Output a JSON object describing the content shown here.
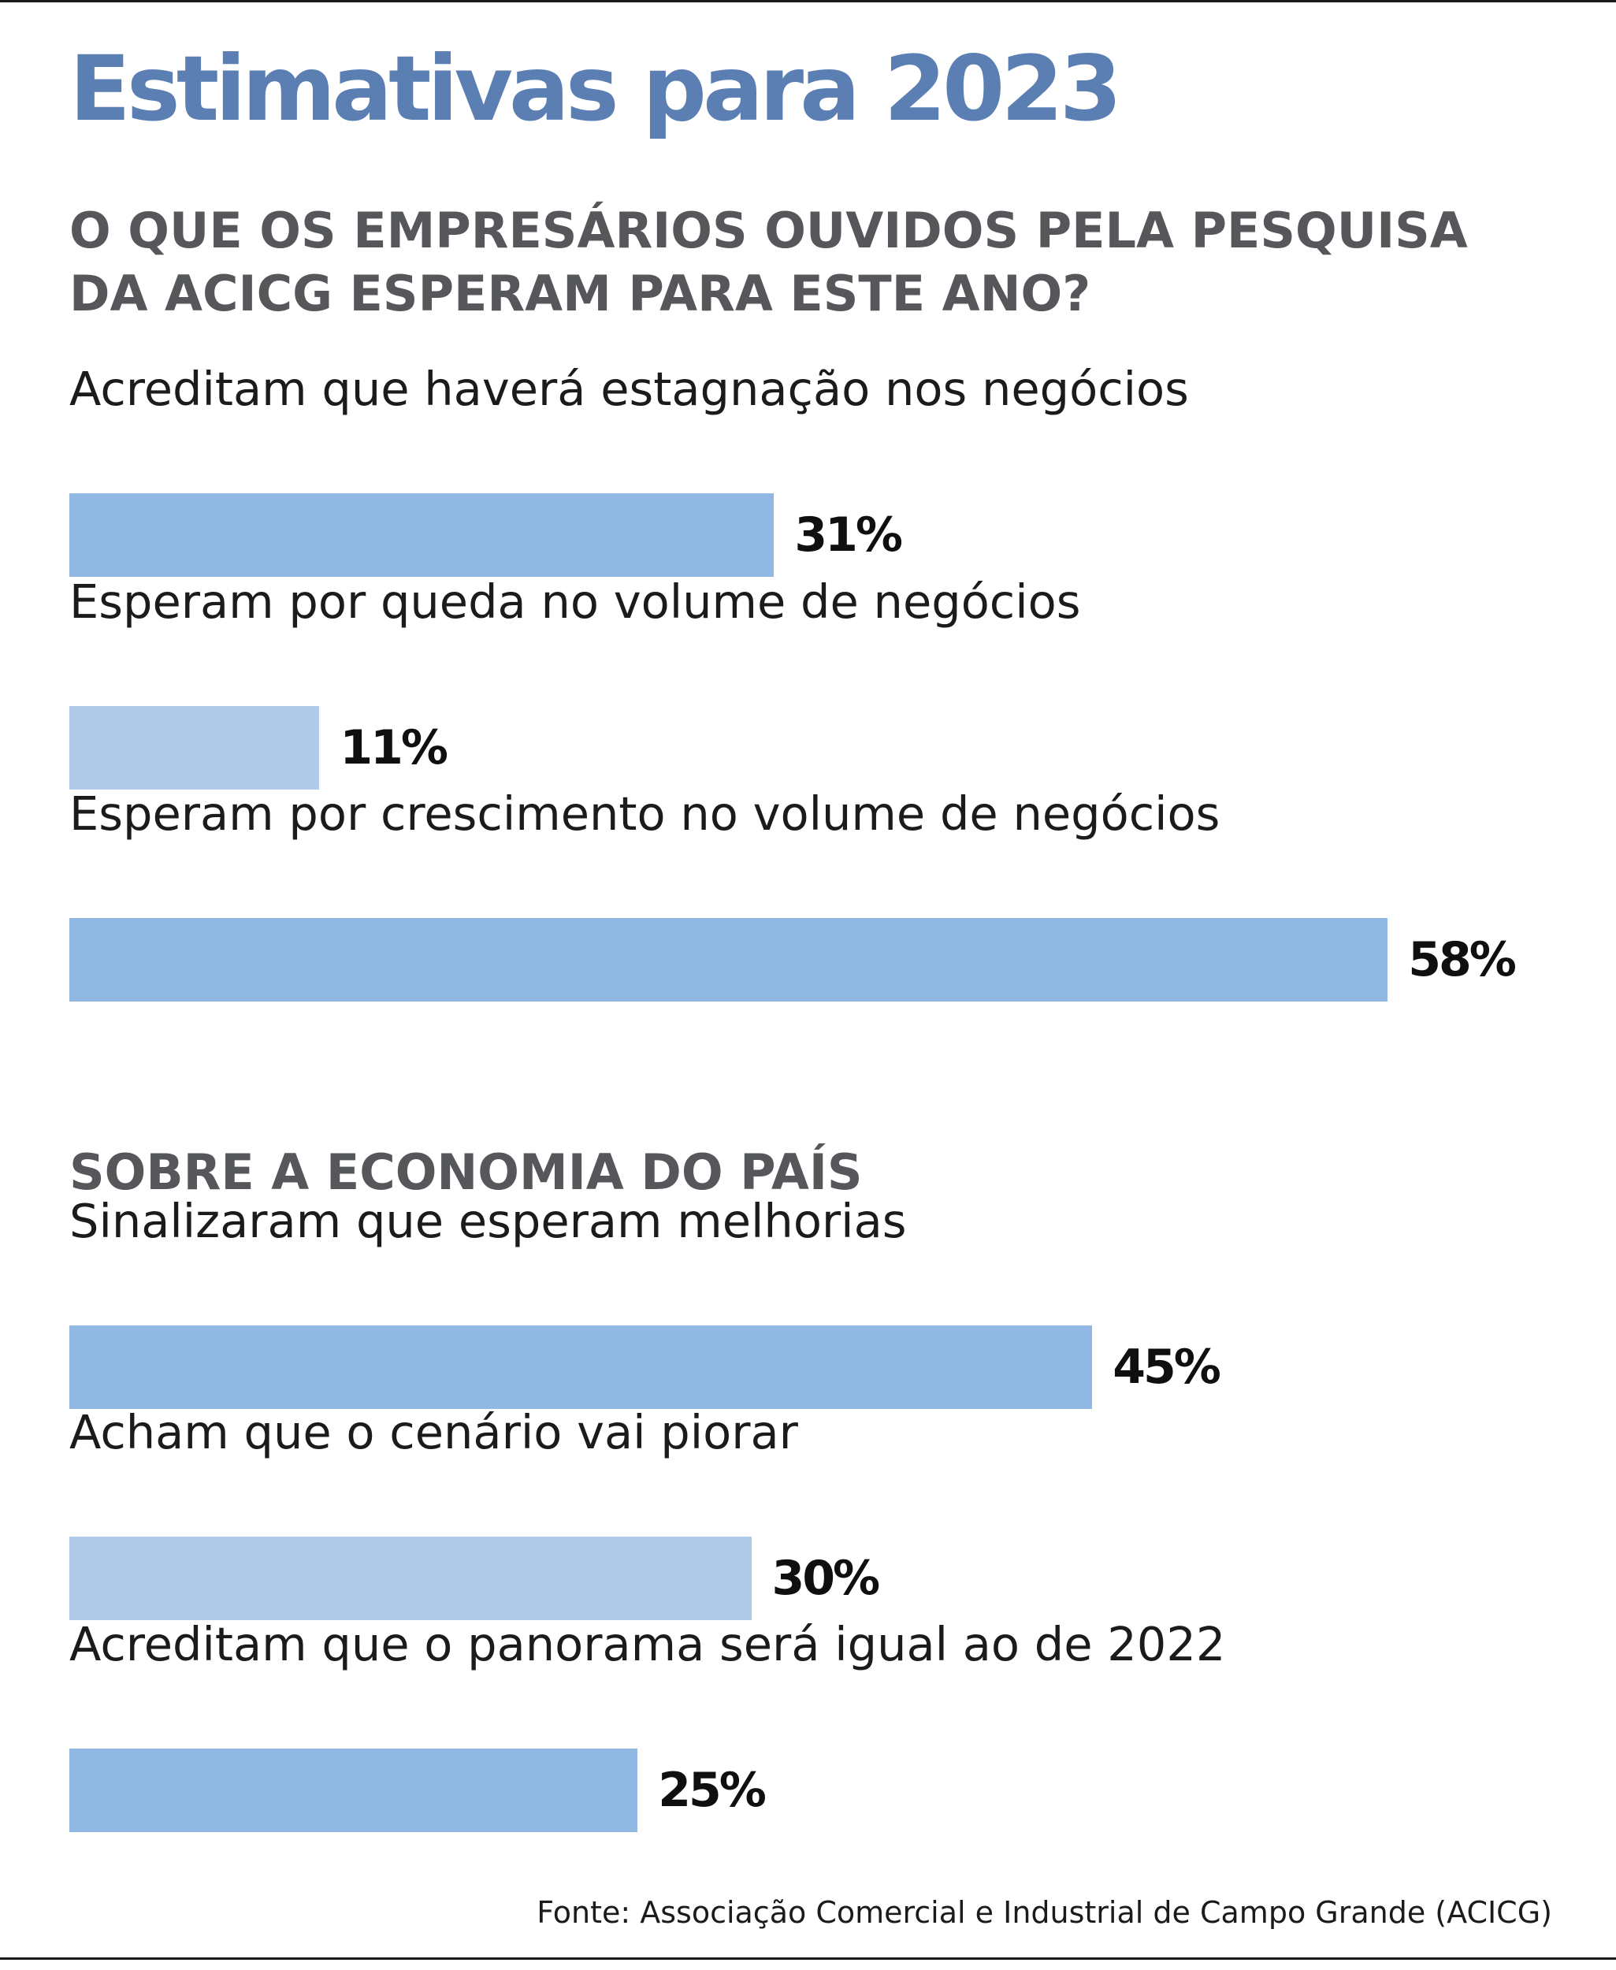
{
  "title": "Estimativas para 2023",
  "section1": {
    "title_line1": "O QUE OS EMPRESÁRIOS OUVIDOS PELA PESQUISA",
    "title_line2": "DA ACICG ESPERAM PARA ESTE ANO?"
  },
  "section2": {
    "title": "SOBRE A ECONOMIA DO PAÍS"
  },
  "source": "Fonte: Associação Comercial e Industrial de Campo Grande (ACICG)",
  "colors": {
    "title": "#5b7fb2",
    "bar_dark": "#90b8e2",
    "bar_light": "#b0cbe9"
  },
  "chart_data": [
    {
      "type": "bar",
      "orientation": "horizontal",
      "title": "O QUE OS EMPRESÁRIOS OUVIDOS PELA PESQUISA DA ACICG ESPERAM PARA ESTE ANO?",
      "categories": [
        "Acreditam que haverá estagnação nos negócios",
        "Esperam por queda no volume de negócios",
        "Esperam por crescimento no volume de negócios"
      ],
      "values": [
        31,
        11,
        58
      ],
      "value_labels": [
        "31%",
        "11%",
        "58%"
      ],
      "bar_colors": [
        "#90b8e2",
        "#b0cbe9",
        "#90b8e2"
      ],
      "unit": "%",
      "xlim": [
        0,
        100
      ],
      "grid": false
    },
    {
      "type": "bar",
      "orientation": "horizontal",
      "title": "SOBRE A ECONOMIA DO PAÍS",
      "categories": [
        "Sinalizaram que esperam melhorias",
        "Acham que o cenário vai piorar",
        "Acreditam que o panorama será igual ao de 2022"
      ],
      "values": [
        45,
        30,
        25
      ],
      "value_labels": [
        "45%",
        "30%",
        "25%"
      ],
      "bar_colors": [
        "#90b8e2",
        "#b0cbe9",
        "#90b8e2"
      ],
      "unit": "%",
      "xlim": [
        0,
        100
      ],
      "grid": false
    }
  ]
}
